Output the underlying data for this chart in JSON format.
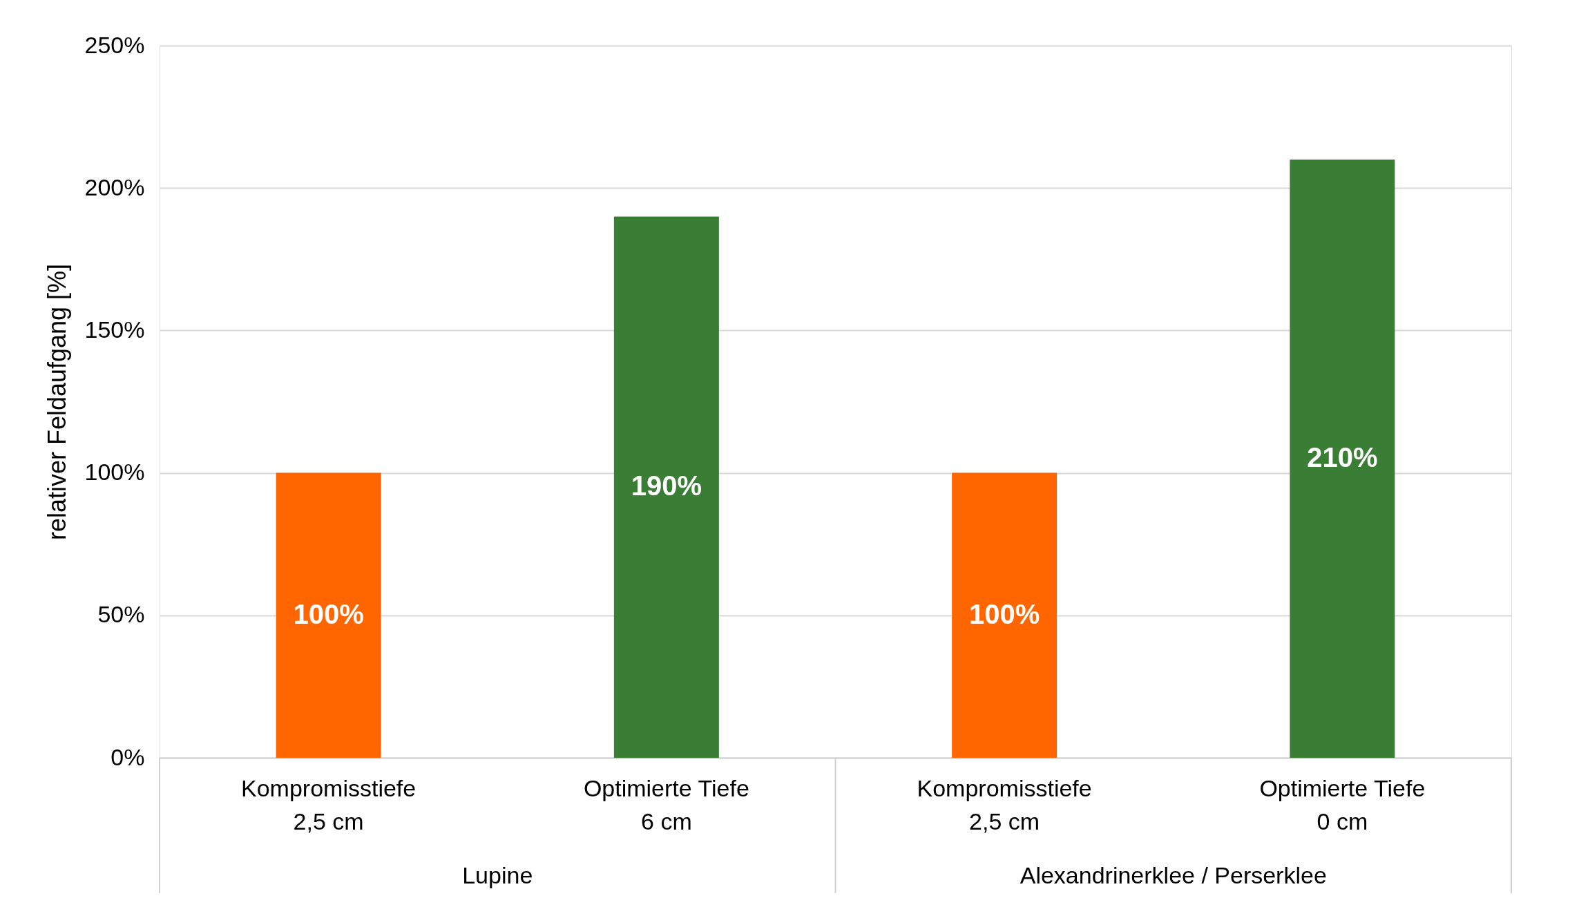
{
  "chart_data": {
    "type": "bar",
    "ylabel": "relativer Feldaufgang [%]",
    "categories": [
      "Kompromisstiefe\n2,5 cm",
      "Optimierte Tiefe\n6 cm",
      "Kompromisstiefe\n2,5 cm",
      "Optimierte Tiefe\n0 cm"
    ],
    "values": [
      100,
      190,
      100,
      210
    ],
    "colors": [
      "#ff6600",
      "#3a7d34",
      "#ff6600",
      "#3a7d34"
    ],
    "value_labels": [
      "100%",
      "190%",
      "100%",
      "210%"
    ],
    "ylim": [
      0,
      250
    ],
    "yticks": [
      {
        "value": 0,
        "label": "0%"
      },
      {
        "value": 50,
        "label": "50%"
      },
      {
        "value": 100,
        "label": "100%"
      },
      {
        "value": 150,
        "label": "150%"
      },
      {
        "value": 200,
        "label": "200%"
      },
      {
        "value": 250,
        "label": "250%"
      }
    ],
    "grid": "y",
    "annotations": [
      "Lupine",
      "Alexandrinerklee / Perserklee"
    ]
  }
}
